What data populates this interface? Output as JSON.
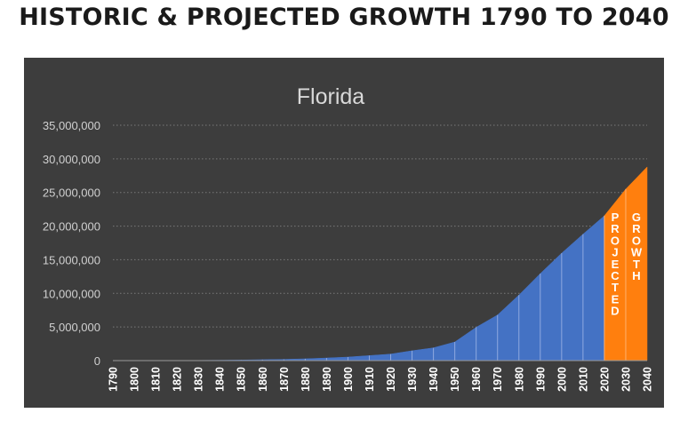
{
  "page": {
    "heading": "HISTORIC & PROJECTED GROWTH 1790 TO 2040"
  },
  "chart_data": {
    "type": "area",
    "title": "Florida",
    "xlabel": "",
    "ylabel": "",
    "x": [
      1790,
      1800,
      1810,
      1820,
      1830,
      1840,
      1850,
      1860,
      1870,
      1880,
      1890,
      1900,
      1910,
      1920,
      1930,
      1940,
      1950,
      1960,
      1970,
      1980,
      1990,
      2000,
      2010,
      2020,
      2030,
      2040
    ],
    "x_tick_labels": [
      "1790",
      "1800",
      "1810",
      "1820",
      "1830",
      "1840",
      "1850",
      "1860",
      "1870",
      "1880",
      "1890",
      "1900",
      "1910",
      "1920",
      "1930",
      "1940",
      "1950",
      "1960",
      "1970",
      "1980",
      "1990",
      "2000",
      "2010",
      "2020",
      "2030",
      "2040"
    ],
    "series": [
      {
        "values": [
          0,
          0,
          0,
          0,
          35000,
          55000,
          87000,
          140000,
          188000,
          270000,
          390000,
          530000,
          750000,
          970000,
          1470000,
          1900000,
          2770000,
          4950000,
          6790000,
          9750000,
          12940000,
          15980000,
          18800000,
          21540000,
          25500000,
          28800000
        ],
        "historic_color": "#4472c4",
        "projected_color": "#ff7f0e",
        "projected_from": 2020
      }
    ],
    "ylim": [
      0,
      35000000
    ],
    "y_ticks": [
      0,
      5000000,
      10000000,
      15000000,
      20000000,
      25000000,
      30000000,
      35000000
    ],
    "y_tick_labels": [
      "0",
      "5,000,000",
      "10,000,000",
      "15,000,000",
      "20,000,000",
      "25,000,000",
      "30,000,000",
      "35,000,000"
    ],
    "grid": true,
    "annotations": [
      {
        "text": "PROJECTED",
        "between": [
          2020,
          2030
        ]
      },
      {
        "text": "GROWTH",
        "between": [
          2030,
          2040
        ]
      }
    ]
  }
}
